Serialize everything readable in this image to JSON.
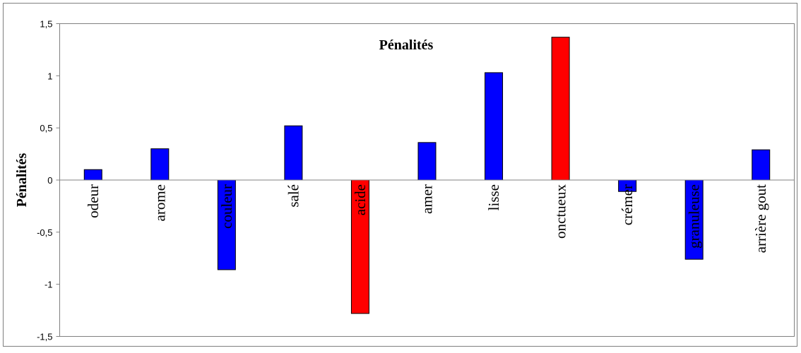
{
  "chart_data": {
    "type": "bar",
    "title": "Pénalités",
    "ylabel": "Pénalités",
    "xlabel": "",
    "ylim": [
      -1.5,
      1.5
    ],
    "yticks": [
      1.5,
      1,
      0.5,
      0,
      -0.5,
      -1,
      -1.5
    ],
    "ytick_labels": [
      "1,5",
      "1",
      "0,5",
      "0",
      "-0,5",
      "-1",
      "-1,5"
    ],
    "categories": [
      "odeur",
      "arome",
      "couleur",
      "salé",
      "acide",
      "amer",
      "lisse",
      "onctueux",
      "crémer",
      "granuleuse",
      "arrière gout"
    ],
    "values": [
      0.1,
      0.3,
      -0.86,
      0.52,
      -1.28,
      0.36,
      1.03,
      1.37,
      -0.11,
      -0.76,
      0.29
    ],
    "bar_colors": [
      "#0000ff",
      "#0000ff",
      "#0000ff",
      "#0000ff",
      "#ff0000",
      "#0000ff",
      "#0000ff",
      "#ff0000",
      "#0000ff",
      "#0000ff",
      "#0000ff"
    ],
    "grid": false,
    "legend": "none"
  }
}
